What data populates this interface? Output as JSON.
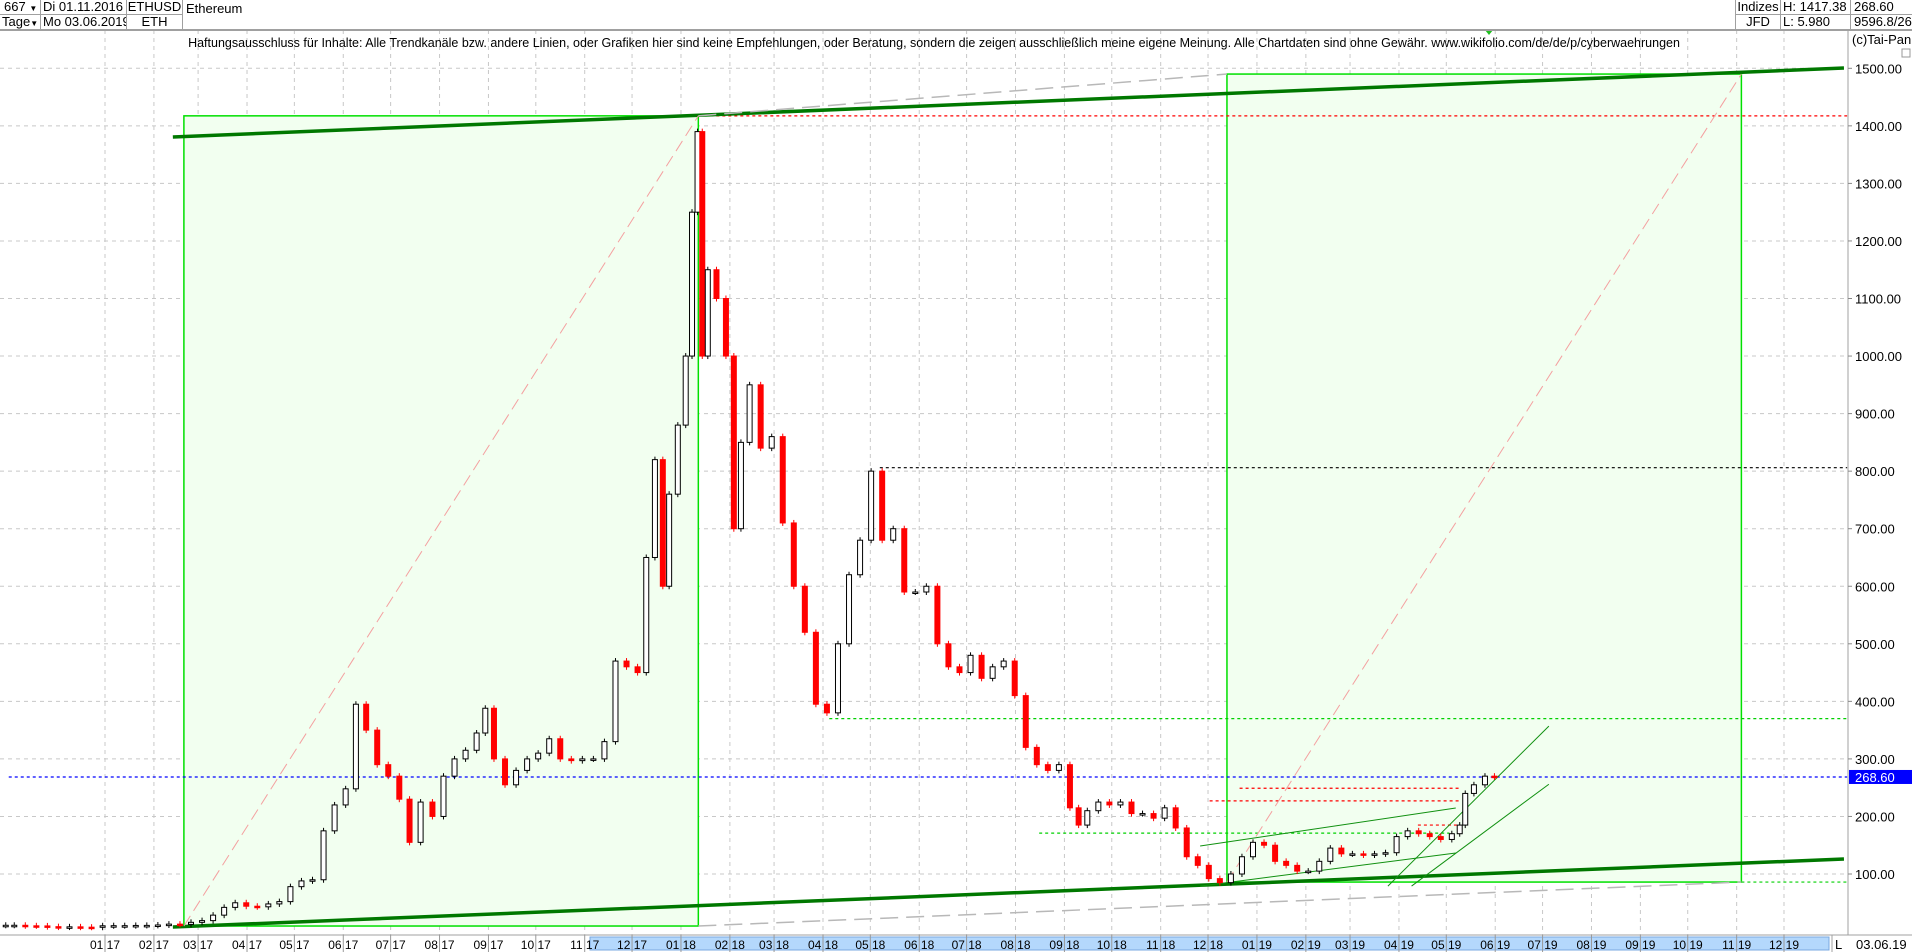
{
  "header": {
    "bars": "667",
    "period": "Tage",
    "date_from": "Di 01.11.2016",
    "date_to": "Mo 03.06.2019",
    "symbol": "ETHUSD",
    "short": "ETH",
    "name": "Ethereum",
    "exchange": "Indizes",
    "source": "JFD",
    "high": "H: 1417.38",
    "low": "L: 5.980",
    "last": "268.60",
    "extra": "9596.8/26"
  },
  "disclaimer": "Haftungsausschluss für Inhalte: Alle Trendkanäle bzw. andere Linien, oder Grafiken hier sind keine Empfehlungen, oder Beratung, sondern die zeigen ausschließlich meine eigene Meinung. Alle Chartdaten sind ohne Gewähr.  www.wikifolio.com/de/de/p/cyberwaehrungen",
  "copyright": "(c)Tai-Pan",
  "footer": {
    "mode": "L",
    "date": "03.06.19"
  },
  "colors": {
    "up": "#000000",
    "down": "#ff0000",
    "trend": "#007800",
    "box": "#00e000",
    "box_fill": "#f2fff0",
    "last": "#0000ff"
  },
  "chart_data": {
    "type": "line",
    "title": "Ethereum",
    "ylim": [
      0,
      1540
    ],
    "yticks": [
      100,
      200,
      300,
      400,
      500,
      600,
      700,
      800,
      900,
      1000,
      1100,
      1200,
      1300,
      1400,
      1500
    ],
    "ytick_labels": [
      "100.00",
      "200.00",
      "300.00",
      "400.00",
      "500.00",
      "600.00",
      "700.00",
      "800.00",
      "900.00",
      "1000.00",
      "1100.00",
      "1200.00",
      "1300.00",
      "1400.00",
      "1500.00"
    ],
    "last_value": 268.6,
    "last_label": "268.60",
    "grid": true,
    "xticks": [
      {
        "d": "2017-01-01",
        "l": "01 17"
      },
      {
        "d": "2017-02-01",
        "l": "02 17"
      },
      {
        "d": "2017-03-01",
        "l": "03 17"
      },
      {
        "d": "2017-04-01",
        "l": "04 17"
      },
      {
        "d": "2017-05-01",
        "l": "05 17"
      },
      {
        "d": "2017-06-01",
        "l": "06 17"
      },
      {
        "d": "2017-07-01",
        "l": "07 17"
      },
      {
        "d": "2017-08-01",
        "l": "08 17"
      },
      {
        "d": "2017-09-01",
        "l": "09 17"
      },
      {
        "d": "2017-10-01",
        "l": "10 17"
      },
      {
        "d": "2017-11-01",
        "l": "11 17"
      },
      {
        "d": "2017-12-01",
        "l": "12 17"
      },
      {
        "d": "2018-01-01",
        "l": "01 18"
      },
      {
        "d": "2018-02-01",
        "l": "02 18"
      },
      {
        "d": "2018-03-01",
        "l": "03 18"
      },
      {
        "d": "2018-04-01",
        "l": "04 18"
      },
      {
        "d": "2018-05-01",
        "l": "05 18"
      },
      {
        "d": "2018-06-01",
        "l": "06 18"
      },
      {
        "d": "2018-07-01",
        "l": "07 18"
      },
      {
        "d": "2018-08-01",
        "l": "08 18"
      },
      {
        "d": "2018-09-01",
        "l": "09 18"
      },
      {
        "d": "2018-10-01",
        "l": "10 18"
      },
      {
        "d": "2018-11-01",
        "l": "11 18"
      },
      {
        "d": "2018-12-01",
        "l": "12 18"
      },
      {
        "d": "2019-01-01",
        "l": "01 19"
      },
      {
        "d": "2019-02-01",
        "l": "02 19"
      },
      {
        "d": "2019-03-01",
        "l": "03 19"
      },
      {
        "d": "2019-04-01",
        "l": "04 19"
      },
      {
        "d": "2019-05-01",
        "l": "05 19"
      },
      {
        "d": "2019-06-01",
        "l": "06 19"
      },
      {
        "d": "2019-07-01",
        "l": "07 19"
      },
      {
        "d": "2019-08-01",
        "l": "08 19"
      },
      {
        "d": "2019-09-01",
        "l": "09 19"
      },
      {
        "d": "2019-10-01",
        "l": "10 19"
      },
      {
        "d": "2019-11-01",
        "l": "11 19"
      },
      {
        "d": "2019-12-01",
        "l": "12 19"
      }
    ],
    "prices": [
      [
        "2016-11-01",
        10.9
      ],
      [
        "2016-11-08",
        10.9
      ],
      [
        "2016-11-15",
        10.0
      ],
      [
        "2016-11-22",
        9.8
      ],
      [
        "2016-11-29",
        8.5
      ],
      [
        "2016-12-06",
        7.8
      ],
      [
        "2016-12-13",
        8.2
      ],
      [
        "2016-12-20",
        7.6
      ],
      [
        "2016-12-27",
        7.5
      ],
      [
        "2017-01-03",
        10.0
      ],
      [
        "2017-01-10",
        10.2
      ],
      [
        "2017-01-17",
        10.2
      ],
      [
        "2017-01-24",
        10.6
      ],
      [
        "2017-01-31",
        10.7
      ],
      [
        "2017-02-07",
        11.4
      ],
      [
        "2017-02-14",
        12.9
      ],
      [
        "2017-02-21",
        12.5
      ],
      [
        "2017-02-28",
        16
      ],
      [
        "2017-03-07",
        19
      ],
      [
        "2017-03-14",
        28.5
      ],
      [
        "2017-03-21",
        42
      ],
      [
        "2017-03-28",
        50
      ],
      [
        "2017-04-04",
        44
      ],
      [
        "2017-04-11",
        43
      ],
      [
        "2017-04-18",
        48
      ],
      [
        "2017-04-25",
        52
      ],
      [
        "2017-05-02",
        78
      ],
      [
        "2017-05-09",
        88
      ],
      [
        "2017-05-16",
        90
      ],
      [
        "2017-05-23",
        175
      ],
      [
        "2017-05-30",
        220
      ],
      [
        "2017-06-06",
        248
      ],
      [
        "2017-06-12",
        395
      ],
      [
        "2017-06-19",
        350
      ],
      [
        "2017-06-26",
        290
      ],
      [
        "2017-07-03",
        270
      ],
      [
        "2017-07-10",
        230
      ],
      [
        "2017-07-16",
        155
      ],
      [
        "2017-07-24",
        225
      ],
      [
        "2017-07-31",
        200
      ],
      [
        "2017-08-07",
        270
      ],
      [
        "2017-08-14",
        300
      ],
      [
        "2017-08-21",
        315
      ],
      [
        "2017-08-28",
        345
      ],
      [
        "2017-09-01",
        388
      ],
      [
        "2017-09-08",
        300
      ],
      [
        "2017-09-15",
        255
      ],
      [
        "2017-09-22",
        280
      ],
      [
        "2017-09-29",
        300
      ],
      [
        "2017-10-06",
        310
      ],
      [
        "2017-10-13",
        335
      ],
      [
        "2017-10-20",
        300
      ],
      [
        "2017-10-27",
        297
      ],
      [
        "2017-11-03",
        300
      ],
      [
        "2017-11-10",
        300
      ],
      [
        "2017-11-17",
        330
      ],
      [
        "2017-11-24",
        470
      ],
      [
        "2017-12-01",
        460
      ],
      [
        "2017-12-08",
        450
      ],
      [
        "2017-12-12",
        650
      ],
      [
        "2017-12-19",
        820
      ],
      [
        "2017-12-22",
        600
      ],
      [
        "2017-12-27",
        760
      ],
      [
        "2018-01-02",
        880
      ],
      [
        "2018-01-06",
        1000
      ],
      [
        "2018-01-10",
        1250
      ],
      [
        "2018-01-13",
        1390
      ],
      [
        "2018-01-16",
        1000
      ],
      [
        "2018-01-20",
        1150
      ],
      [
        "2018-01-27",
        1100
      ],
      [
        "2018-02-01",
        1000
      ],
      [
        "2018-02-06",
        700
      ],
      [
        "2018-02-10",
        850
      ],
      [
        "2018-02-17",
        950
      ],
      [
        "2018-02-24",
        840
      ],
      [
        "2018-03-03",
        860
      ],
      [
        "2018-03-10",
        710
      ],
      [
        "2018-03-17",
        600
      ],
      [
        "2018-03-24",
        520
      ],
      [
        "2018-03-31",
        395
      ],
      [
        "2018-04-07",
        380
      ],
      [
        "2018-04-14",
        500
      ],
      [
        "2018-04-21",
        620
      ],
      [
        "2018-04-28",
        680
      ],
      [
        "2018-05-05",
        800
      ],
      [
        "2018-05-12",
        680
      ],
      [
        "2018-05-19",
        700
      ],
      [
        "2018-05-26",
        590
      ],
      [
        "2018-06-02",
        590
      ],
      [
        "2018-06-09",
        600
      ],
      [
        "2018-06-16",
        500
      ],
      [
        "2018-06-23",
        460
      ],
      [
        "2018-06-30",
        450
      ],
      [
        "2018-07-07",
        480
      ],
      [
        "2018-07-14",
        440
      ],
      [
        "2018-07-21",
        460
      ],
      [
        "2018-07-28",
        470
      ],
      [
        "2018-08-04",
        410
      ],
      [
        "2018-08-11",
        320
      ],
      [
        "2018-08-18",
        290
      ],
      [
        "2018-08-25",
        280
      ],
      [
        "2018-09-01",
        290
      ],
      [
        "2018-09-08",
        215
      ],
      [
        "2018-09-12",
        185
      ],
      [
        "2018-09-19",
        210
      ],
      [
        "2018-09-26",
        225
      ],
      [
        "2018-10-03",
        220
      ],
      [
        "2018-10-10",
        225
      ],
      [
        "2018-10-17",
        205
      ],
      [
        "2018-10-24",
        205
      ],
      [
        "2018-10-31",
        197
      ],
      [
        "2018-11-07",
        215
      ],
      [
        "2018-11-14",
        180
      ],
      [
        "2018-11-21",
        130
      ],
      [
        "2018-11-28",
        115
      ],
      [
        "2018-12-05",
        92
      ],
      [
        "2018-12-12",
        85
      ],
      [
        "2018-12-19",
        100
      ],
      [
        "2018-12-26",
        130
      ],
      [
        "2019-01-02",
        155
      ],
      [
        "2019-01-09",
        150
      ],
      [
        "2019-01-16",
        122
      ],
      [
        "2019-01-23",
        115
      ],
      [
        "2019-01-30",
        105
      ],
      [
        "2019-02-06",
        105
      ],
      [
        "2019-02-13",
        122
      ],
      [
        "2019-02-20",
        145
      ],
      [
        "2019-02-27",
        135
      ],
      [
        "2019-03-06",
        135
      ],
      [
        "2019-03-13",
        133
      ],
      [
        "2019-03-20",
        135
      ],
      [
        "2019-03-27",
        137
      ],
      [
        "2019-04-03",
        165
      ],
      [
        "2019-04-10",
        175
      ],
      [
        "2019-04-17",
        170
      ],
      [
        "2019-04-24",
        165
      ],
      [
        "2019-05-01",
        160
      ],
      [
        "2019-05-08",
        170
      ],
      [
        "2019-05-11",
        185
      ],
      [
        "2019-05-15",
        240
      ],
      [
        "2019-05-22",
        255
      ],
      [
        "2019-05-29",
        270
      ],
      [
        "2019-06-03",
        268.6
      ]
    ],
    "boxes": [
      {
        "d1": "2017-02-20",
        "d2": "2018-01-12",
        "v1": 9.6,
        "v2": 1417.38
      },
      {
        "d1": "2018-12-13",
        "d2": "2019-11-04",
        "v1": 86,
        "v2": 1490
      }
    ],
    "trendlines": [
      {
        "kind": "thick",
        "d1": "2017-02-13",
        "v1": 1380.6,
        "d2": "2020-01-08",
        "v2": 1500.5
      },
      {
        "kind": "thick",
        "d1": "2017-02-13",
        "v1": 7.9,
        "d2": "2020-01-08",
        "v2": 126
      },
      {
        "kind": "gray",
        "d1": "2018-01-12",
        "v1": 1417.38,
        "d2": "2018-12-13",
        "v2": 1490
      },
      {
        "kind": "gray",
        "d1": "2018-01-12",
        "v1": 9.6,
        "d2": "2019-11-04",
        "v2": 86
      },
      {
        "kind": "pink",
        "d1": "2017-02-20",
        "v1": 9.6,
        "d2": "2018-01-12",
        "v2": 1417.38
      },
      {
        "kind": "pink",
        "d1": "2018-12-13",
        "v1": 86,
        "d2": "2019-11-04",
        "v2": 1490
      },
      {
        "kind": "thin",
        "d1": "2018-11-26",
        "v1": 148.7,
        "d2": "2019-05-07",
        "v2": 214.7
      },
      {
        "kind": "thin",
        "d1": "2018-11-26",
        "v1": 79,
        "d2": "2019-05-07",
        "v2": 136.5
      },
      {
        "kind": "thin",
        "d1": "2019-03-25",
        "v1": 79,
        "d2": "2019-07-05",
        "v2": 357
      },
      {
        "kind": "thin",
        "d1": "2019-04-09",
        "v1": 79,
        "d2": "2019-07-05",
        "v2": 256
      }
    ],
    "levels": [
      {
        "color": "#ff0000",
        "v": 1417.38,
        "d1": "2018-01-12",
        "d2": "2020-01-10"
      },
      {
        "color": "#000000",
        "v": 806,
        "d1": "2018-05-07",
        "d2": "2020-01-10"
      },
      {
        "color": "#00d000",
        "v": 370,
        "d1": "2018-04-05",
        "d2": "2020-01-10"
      },
      {
        "color": "#0000ff",
        "v": 268.6,
        "d1": "2016-11-01",
        "d2": "2020-01-10"
      },
      {
        "color": "#00d000",
        "v": 86,
        "d1": "2019-11-04",
        "d2": "2020-01-10"
      },
      {
        "color": "#ff0000",
        "v": 249,
        "d1": "2018-12-21",
        "d2": "2019-05-10"
      },
      {
        "color": "#ff0000",
        "v": 227,
        "d1": "2018-12-02",
        "d2": "2019-05-10"
      },
      {
        "color": "#00d000",
        "v": 171,
        "d1": "2018-08-16",
        "d2": "2019-05-03"
      },
      {
        "color": "#ff0000",
        "v": 185,
        "d1": "2019-04-13",
        "d2": "2019-05-08"
      }
    ]
  }
}
